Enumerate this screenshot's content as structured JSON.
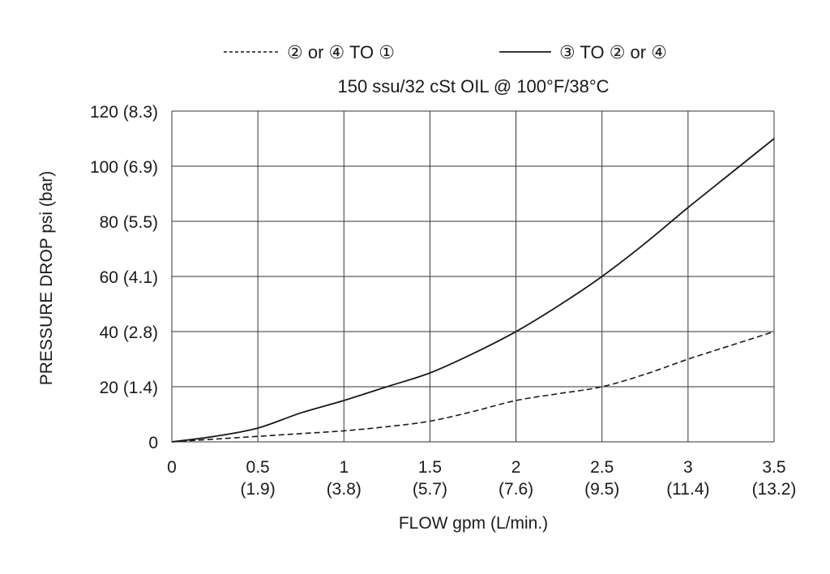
{
  "chart_data": {
    "type": "line",
    "subtitle": "150 ssu/32 cSt OIL @ 100°F/38°C",
    "xlabel": "FLOW gpm (L/min.)",
    "ylabel": "PRESSURE DROP psi (bar)",
    "xlim": [
      0,
      3.5
    ],
    "ylim": [
      0,
      120
    ],
    "grid": true,
    "legend_position": "top",
    "x_ticks": [
      {
        "value": 0,
        "label": "0",
        "sublabel": ""
      },
      {
        "value": 0.5,
        "label": "0.5",
        "sublabel": "(1.9)"
      },
      {
        "value": 1,
        "label": "1",
        "sublabel": "(3.8)"
      },
      {
        "value": 1.5,
        "label": "1.5",
        "sublabel": "(5.7)"
      },
      {
        "value": 2,
        "label": "2",
        "sublabel": "(7.6)"
      },
      {
        "value": 2.5,
        "label": "2.5",
        "sublabel": "(9.5)"
      },
      {
        "value": 3,
        "label": "3",
        "sublabel": "(11.4)"
      },
      {
        "value": 3.5,
        "label": "3.5",
        "sublabel": "(13.2)"
      }
    ],
    "y_ticks": [
      {
        "value": 0,
        "label": "0"
      },
      {
        "value": 20,
        "label": "20 (1.4)"
      },
      {
        "value": 40,
        "label": "40 (2.8)"
      },
      {
        "value": 60,
        "label": "60 (4.1)"
      },
      {
        "value": 80,
        "label": "80 (5.5)"
      },
      {
        "value": 100,
        "label": "100 (6.9)"
      },
      {
        "value": 120,
        "label": "120 (8.3)"
      }
    ],
    "series": [
      {
        "name": "② or ④ TO ①",
        "style": "dashed",
        "color": "#1a1a1a",
        "x": [
          0,
          0.25,
          0.5,
          0.75,
          1.0,
          1.25,
          1.5,
          1.75,
          2.0,
          2.25,
          2.5,
          2.75,
          3.0,
          3.25,
          3.5
        ],
        "y": [
          0,
          1,
          2,
          3,
          4,
          5.5,
          7.5,
          11,
          15,
          17.5,
          20,
          24.5,
          30,
          35,
          40
        ]
      },
      {
        "name": "③ TO ② or ④",
        "style": "solid",
        "color": "#1a1a1a",
        "x": [
          0,
          0.25,
          0.5,
          0.75,
          1.0,
          1.25,
          1.5,
          1.75,
          2.0,
          2.25,
          2.5,
          2.75,
          3.0,
          3.25,
          3.5
        ],
        "y": [
          0,
          2,
          5,
          10.5,
          15,
          20,
          25,
          32,
          40,
          49.5,
          60,
          72,
          85,
          97.5,
          110
        ]
      }
    ]
  }
}
